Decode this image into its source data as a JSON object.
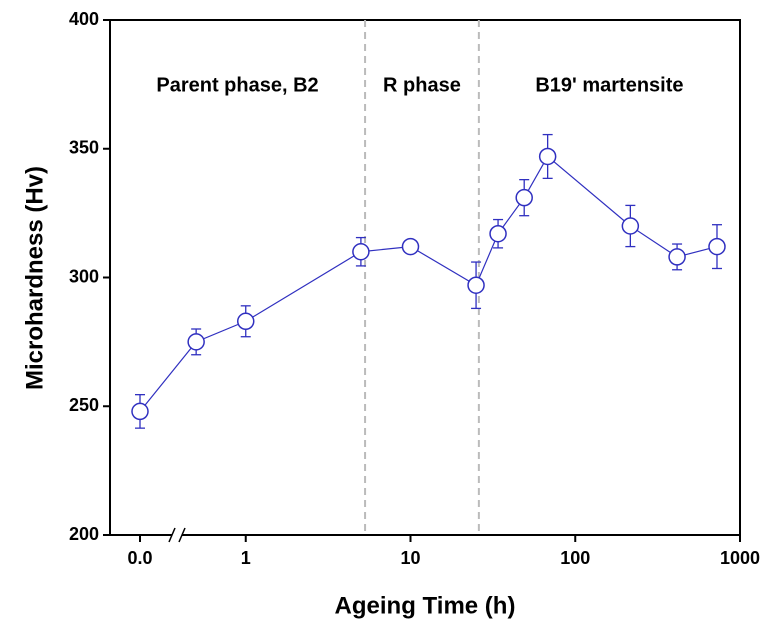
{
  "chart_data": {
    "type": "line",
    "x_label": "Ageing Time (h)",
    "y_label": "Microhardness (Hv)",
    "x_scale": "log",
    "x_break": true,
    "x": [
      0,
      0.5,
      1,
      5,
      10,
      25,
      34,
      49,
      68,
      216,
      415,
      725
    ],
    "series": [
      {
        "color": "#3030c0",
        "values": [
          248,
          275,
          283,
          310,
          312,
          297,
          317,
          331,
          347,
          320,
          308,
          312
        ],
        "errors": [
          6.5,
          5,
          6,
          5.5,
          2,
          9,
          5.5,
          7,
          8.5,
          8,
          5,
          8.5
        ]
      }
    ],
    "xlim": [
      0.15,
      1000
    ],
    "xticks": [
      {
        "value": 0,
        "label": "0.0"
      },
      1,
      10,
      100,
      1000
    ],
    "ylim": [
      200,
      400
    ],
    "yticks": [
      200,
      250,
      300,
      350,
      400
    ],
    "phase_boundaries": [
      5.3,
      26
    ],
    "phase_labels": [
      "Parent phase, B2",
      "R phase",
      "B19' martensite"
    ]
  }
}
